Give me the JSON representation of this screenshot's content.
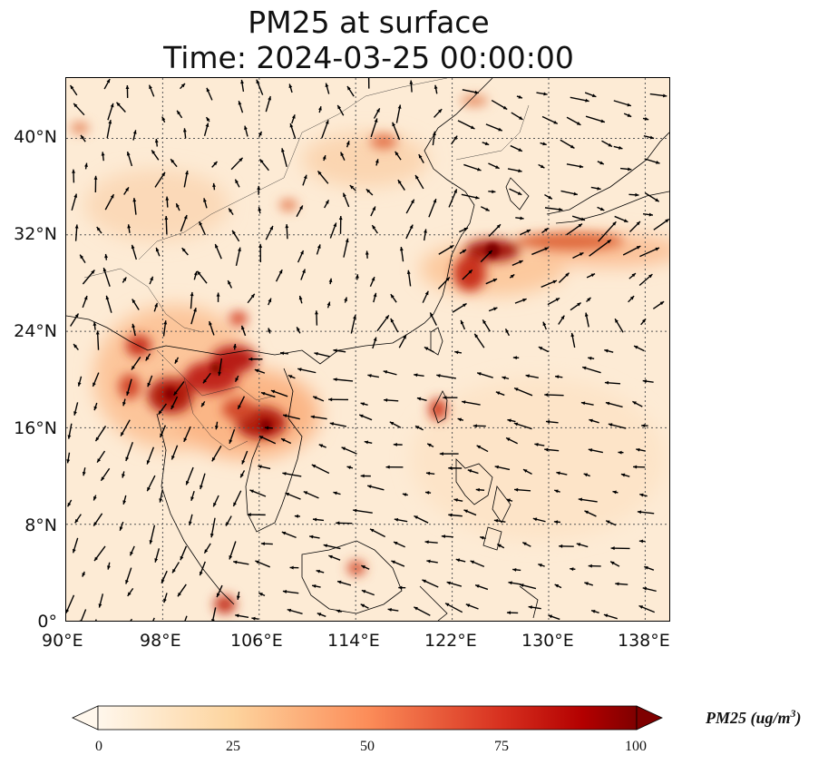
{
  "title": {
    "line1": "PM25 at surface",
    "line2": "Time: 2024-03-25 00:00:00"
  },
  "map": {
    "projection": "plate-carree",
    "lon_range": [
      90,
      140
    ],
    "lat_range": [
      0,
      45
    ],
    "lon_ticks": [
      "90°E",
      "98°E",
      "106°E",
      "114°E",
      "122°E",
      "130°E",
      "138°E"
    ],
    "lat_ticks": [
      "0°",
      "8°N",
      "16°N",
      "24°N",
      "32°N",
      "40°N"
    ],
    "gridlines": "dotted",
    "vector_field": "wind arrows",
    "colors": {
      "low": "#fff5eb",
      "mid": "#fdae6b",
      "high": "#7f0000"
    }
  },
  "colorbar": {
    "title": "PM25 (ug/m",
    "title_sup": "3",
    "title_close": ")",
    "ticks": [
      "0",
      "25",
      "50",
      "75",
      "100"
    ],
    "range": [
      0,
      100
    ],
    "extend": "both",
    "colormap": "OrRd"
  }
}
